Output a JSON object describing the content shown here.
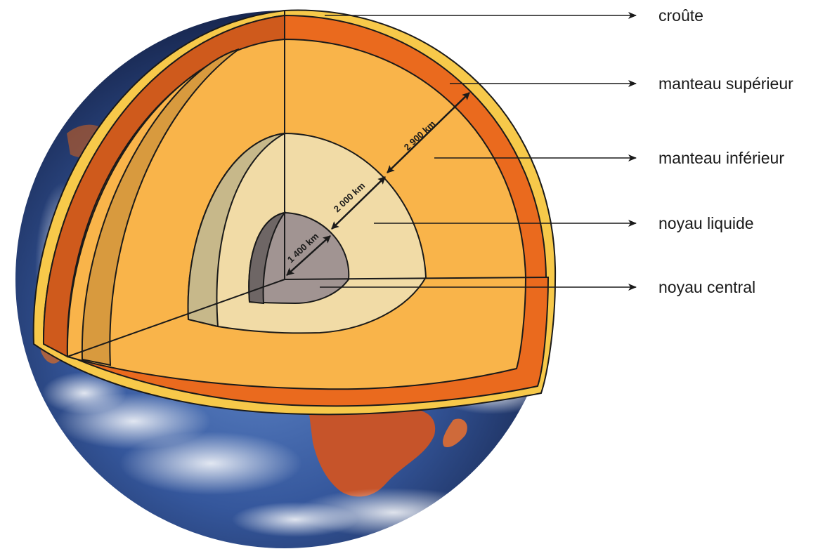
{
  "labels": {
    "crust": "croûte",
    "upper_mantle": "manteau supérieur",
    "lower_mantle": "manteau inférieur",
    "liquid_core": "noyau liquide",
    "inner_core": "noyau central"
  },
  "dimensions": {
    "inner_core": "1 400 km",
    "outer_core": "2 000 km",
    "mantle": "2 900 km"
  },
  "colors": {
    "crust": "#f7c94a",
    "upper_mantle": "#ea6a1e",
    "upper_mantle_side": "#cf5a1c",
    "lower_mantle": "#f9b44a",
    "lower_mantle_side": "#d89a3e",
    "liquid_core": "#f1dba6",
    "liquid_core_side": "#c7b88a",
    "inner_core": "#a19492",
    "inner_core_side": "#6e6665",
    "ocean": "#3a5fa8"
  }
}
